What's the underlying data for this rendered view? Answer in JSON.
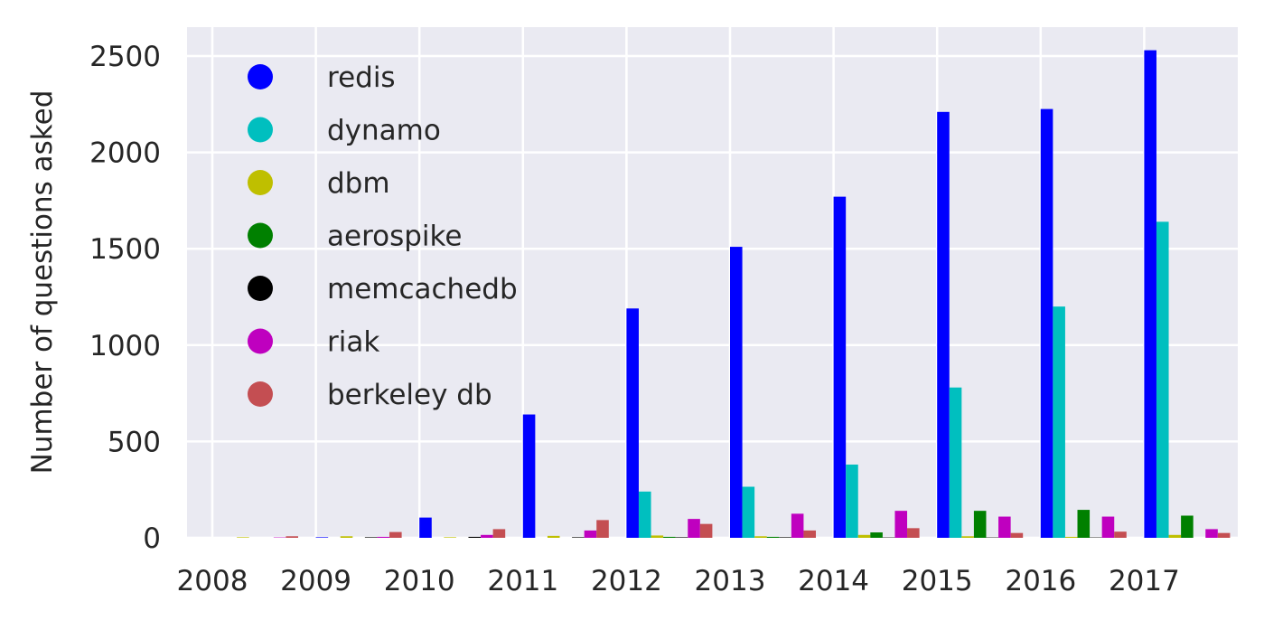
{
  "chart_data": {
    "type": "bar",
    "title": "",
    "xlabel": "",
    "ylabel": "Number of questions asked",
    "categories": [
      "2008",
      "2009",
      "2010",
      "2011",
      "2012",
      "2013",
      "2014",
      "2015",
      "2016",
      "2017"
    ],
    "ylim": [
      0,
      2650
    ],
    "yticks": [
      0,
      500,
      1000,
      1500,
      2000,
      2500
    ],
    "grid": true,
    "legend_position": "top-left",
    "series": [
      {
        "name": "redis",
        "color": "#0000ff",
        "values": [
          0,
          3,
          105,
          640,
          1190,
          1510,
          1770,
          2210,
          2225,
          2530
        ]
      },
      {
        "name": "dynamo",
        "color": "#00bfbf",
        "values": [
          0,
          0,
          0,
          0,
          240,
          265,
          380,
          780,
          1200,
          1640
        ]
      },
      {
        "name": "dbm",
        "color": "#bfbf00",
        "values": [
          3,
          8,
          3,
          10,
          12,
          8,
          15,
          8,
          5,
          15
        ]
      },
      {
        "name": "aerospike",
        "color": "#008000",
        "values": [
          0,
          0,
          0,
          0,
          5,
          5,
          28,
          140,
          145,
          115
        ]
      },
      {
        "name": "memcachedb",
        "color": "#000000",
        "values": [
          0,
          3,
          5,
          3,
          3,
          3,
          2,
          2,
          2,
          0
        ]
      },
      {
        "name": "riak",
        "color": "#bf00bf",
        "values": [
          2,
          5,
          15,
          38,
          98,
          125,
          140,
          110,
          110,
          45
        ]
      },
      {
        "name": "berkeley db",
        "color": "#c44e52",
        "values": [
          8,
          30,
          45,
          92,
          72,
          38,
          50,
          25,
          32,
          25
        ]
      }
    ]
  }
}
